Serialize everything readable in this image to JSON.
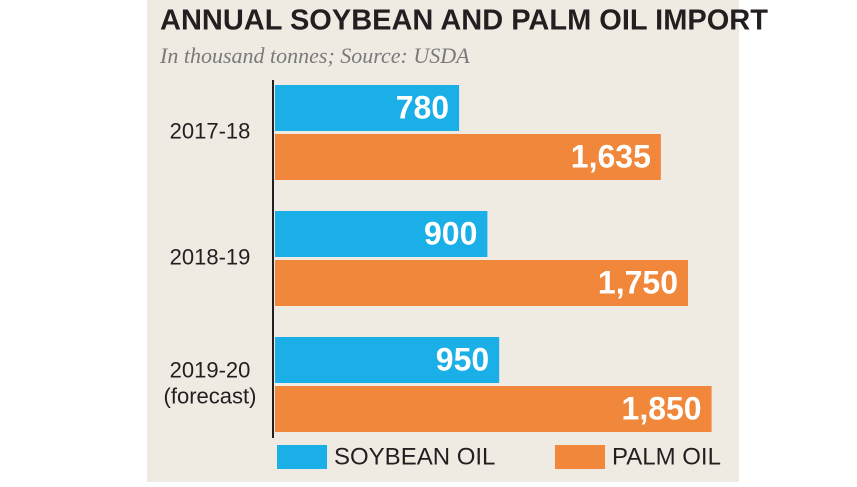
{
  "chart_data": {
    "type": "bar",
    "orientation": "horizontal",
    "title": "ANNUAL SOYBEAN AND PALM OIL IMPORT",
    "subtitle": "In thousand tonnes; Source: USDA",
    "categories": [
      "2017-18",
      "2018-19",
      "2019-20\n(forecast)"
    ],
    "series": [
      {
        "name": "SOYBEAN OIL",
        "color": "#1aafe6",
        "values": [
          780,
          900,
          950
        ]
      },
      {
        "name": "PALM OIL",
        "color": "#f0873a",
        "values": [
          1635,
          1750,
          1850
        ],
        "value_labels": [
          "1,635",
          "1,750",
          "1,850"
        ]
      }
    ]
  }
}
